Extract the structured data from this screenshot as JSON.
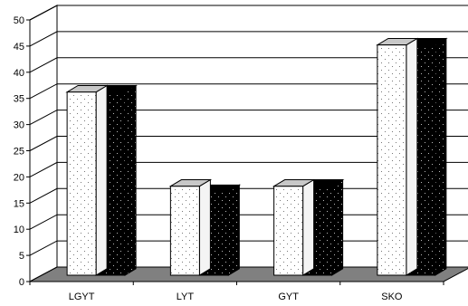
{
  "chart_data": {
    "type": "bar",
    "categories": [
      "LGYT",
      "LYT",
      "GYT",
      "SKO"
    ],
    "series": [
      {
        "values": [
          35,
          17,
          17,
          44
        ],
        "pattern": "white-dotted"
      },
      {
        "values": [
          35,
          16,
          17,
          44
        ],
        "pattern": "black-dotted"
      }
    ],
    "ylim": [
      0,
      50
    ],
    "yticks": [
      0,
      5,
      10,
      15,
      20,
      25,
      30,
      35,
      40,
      45,
      50
    ],
    "grid": true,
    "style": "3d-clustered-column",
    "colors": {
      "floor": "#808080",
      "grid": "#000000",
      "white_bar": "#ffffff",
      "black_bar": "#000000"
    }
  }
}
